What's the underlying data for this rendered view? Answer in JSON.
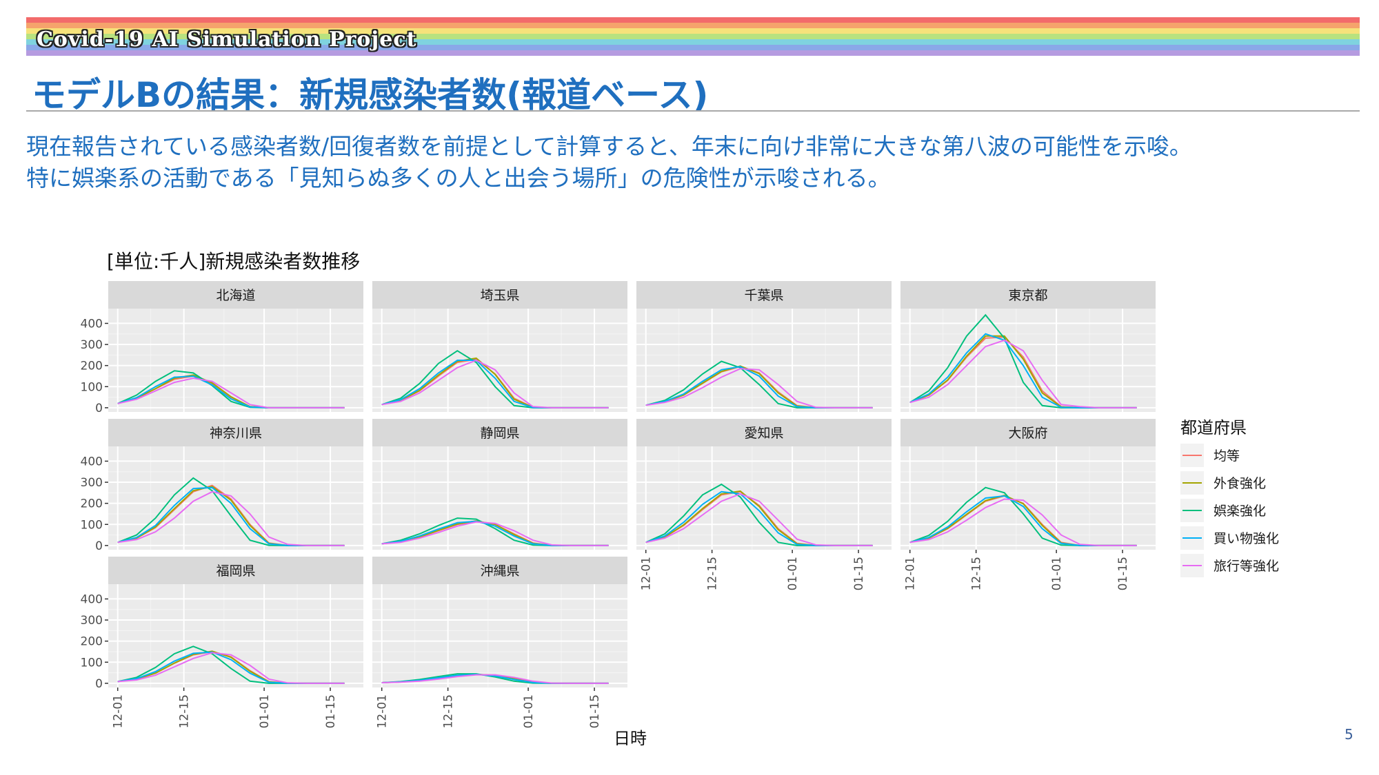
{
  "banner": {
    "title": "Covid-19 AI Simulation Project",
    "stripes": [
      "#f26b6b",
      "#f5a36c",
      "#f6e27a",
      "#b8e27f",
      "#7fd3df",
      "#8aa8e8",
      "#b59be0"
    ]
  },
  "slide": {
    "title": "モデルBの結果：新規感染者数(報道ベース)",
    "lead_line1": "現在報告されている感染者数/回復者数を前提として計算すると、年末に向け非常に大きな第八波の可能性を示唆。",
    "lead_line2": "特に娯楽系の活動である「見知らぬ多くの人と出会う場所」の危険性が示唆される。",
    "page_number": "5"
  },
  "chart_data": {
    "type": "line",
    "title": "[単位:千人]新規感染者数推移",
    "xlabel": "日時",
    "ylabel": "",
    "x_ticks": [
      "12-01",
      "12-15",
      "01-01",
      "01-15"
    ],
    "x_tick_days": [
      0,
      14,
      31,
      45
    ],
    "x_range_days": [
      -2,
      52
    ],
    "y_ticks": [
      "0",
      "100",
      "200",
      "300",
      "400"
    ],
    "ylim": [
      -20,
      470
    ],
    "grid": true,
    "legend_title": "都道府県",
    "legend_position": "right",
    "series_styles": [
      {
        "name": "均等",
        "color": "#f8766d"
      },
      {
        "name": "外食強化",
        "color": "#a3a500"
      },
      {
        "name": "娯楽強化",
        "color": "#00bf7d"
      },
      {
        "name": "買い物強化",
        "color": "#00b0f6"
      },
      {
        "name": "旅行等強化",
        "color": "#e76bf3"
      }
    ],
    "x": [
      0,
      4,
      8,
      12,
      16,
      20,
      24,
      28,
      32,
      36,
      40,
      44,
      48
    ],
    "panels": [
      {
        "name": "北海道",
        "series": [
          {
            "name": "均等",
            "values": [
              20,
              45,
              90,
              135,
              150,
              115,
              50,
              5,
              0,
              0,
              0,
              0,
              0
            ]
          },
          {
            "name": "外食強化",
            "values": [
              20,
              45,
              90,
              140,
              155,
              118,
              52,
              5,
              0,
              0,
              0,
              0,
              0
            ]
          },
          {
            "name": "娯楽強化",
            "values": [
              20,
              60,
              125,
              175,
              165,
              105,
              30,
              2,
              0,
              0,
              0,
              0,
              0
            ]
          },
          {
            "name": "買い物強化",
            "values": [
              20,
              48,
              100,
              145,
              150,
              108,
              42,
              4,
              0,
              0,
              0,
              0,
              0
            ]
          },
          {
            "name": "旅行等強化",
            "values": [
              20,
              40,
              80,
              120,
              140,
              125,
              70,
              15,
              0,
              0,
              0,
              0,
              0
            ]
          }
        ]
      },
      {
        "name": "埼玉県",
        "series": [
          {
            "name": "均等",
            "values": [
              15,
              35,
              80,
              150,
              215,
              230,
              160,
              45,
              2,
              0,
              0,
              0,
              0
            ]
          },
          {
            "name": "外食強化",
            "values": [
              15,
              35,
              82,
              155,
              220,
              235,
              158,
              40,
              2,
              0,
              0,
              0,
              0
            ]
          },
          {
            "name": "娯楽強化",
            "values": [
              15,
              45,
              115,
              210,
              270,
              215,
              100,
              10,
              0,
              0,
              0,
              0,
              0
            ]
          },
          {
            "name": "買い物強化",
            "values": [
              15,
              38,
              90,
              165,
              225,
              225,
              140,
              30,
              1,
              0,
              0,
              0,
              0
            ]
          },
          {
            "name": "旅行等強化",
            "values": [
              15,
              30,
              70,
              130,
              190,
              225,
              180,
              70,
              5,
              0,
              0,
              0,
              0
            ]
          }
        ]
      },
      {
        "name": "千葉県",
        "series": [
          {
            "name": "均等",
            "values": [
              12,
              28,
              60,
              115,
              170,
              195,
              165,
              75,
              10,
              0,
              0,
              0,
              0
            ]
          },
          {
            "name": "外食強化",
            "values": [
              12,
              28,
              60,
              117,
              172,
              198,
              162,
              70,
              8,
              0,
              0,
              0,
              0
            ]
          },
          {
            "name": "娯楽強化",
            "values": [
              12,
              35,
              85,
              160,
              220,
              190,
              110,
              20,
              0,
              0,
              0,
              0,
              0
            ]
          },
          {
            "name": "買い物強化",
            "values": [
              12,
              30,
              65,
              125,
              180,
              195,
              150,
              55,
              5,
              0,
              0,
              0,
              0
            ]
          },
          {
            "name": "旅行等強化",
            "values": [
              12,
              25,
              50,
              95,
              145,
              185,
              180,
              110,
              30,
              2,
              0,
              0,
              0
            ]
          }
        ]
      },
      {
        "name": "東京都",
        "series": [
          {
            "name": "均等",
            "values": [
              25,
              60,
              130,
              240,
              330,
              335,
              240,
              80,
              5,
              0,
              0,
              0,
              0
            ]
          },
          {
            "name": "外食強化",
            "values": [
              25,
              60,
              132,
              245,
              340,
              340,
              230,
              70,
              4,
              0,
              0,
              0,
              0
            ]
          },
          {
            "name": "娯楽強化",
            "values": [
              25,
              80,
              190,
              340,
              440,
              330,
              120,
              10,
              0,
              0,
              0,
              0,
              0
            ]
          },
          {
            "name": "買い物強化",
            "values": [
              25,
              65,
              145,
              260,
              350,
              320,
              200,
              50,
              2,
              0,
              0,
              0,
              0
            ]
          },
          {
            "name": "旅行等強化",
            "values": [
              25,
              50,
              110,
              200,
              290,
              320,
              270,
              130,
              15,
              5,
              0,
              0,
              0
            ]
          }
        ]
      },
      {
        "name": "神奈川県",
        "series": [
          {
            "name": "均等",
            "values": [
              15,
              35,
              85,
              170,
              255,
              285,
              220,
              100,
              12,
              0,
              0,
              0,
              0
            ]
          },
          {
            "name": "外食強化",
            "values": [
              15,
              35,
              88,
              175,
              260,
              280,
              215,
              95,
              10,
              0,
              0,
              0,
              0
            ]
          },
          {
            "name": "娯楽強化",
            "values": [
              15,
              50,
              130,
              240,
              320,
              260,
              140,
              25,
              1,
              0,
              0,
              0,
              0
            ]
          },
          {
            "name": "買い物強化",
            "values": [
              15,
              38,
              95,
              190,
              270,
              275,
              200,
              80,
              8,
              0,
              0,
              0,
              0
            ]
          },
          {
            "name": "旅行等強化",
            "values": [
              15,
              28,
              65,
              130,
              210,
              255,
              235,
              150,
              40,
              5,
              0,
              0,
              0
            ]
          }
        ]
      },
      {
        "name": "静岡県",
        "series": [
          {
            "name": "均等",
            "values": [
              8,
              18,
              40,
              70,
              100,
              115,
              100,
              55,
              12,
              0,
              0,
              0,
              0
            ]
          },
          {
            "name": "外食強化",
            "values": [
              8,
              18,
              40,
              72,
              102,
              117,
              100,
              52,
              10,
              0,
              0,
              0,
              0
            ]
          },
          {
            "name": "娯楽強化",
            "values": [
              8,
              25,
              55,
              95,
              130,
              125,
              80,
              25,
              2,
              0,
              0,
              0,
              0
            ]
          },
          {
            "name": "買い物強化",
            "values": [
              8,
              20,
              45,
              78,
              108,
              115,
              92,
              45,
              8,
              0,
              0,
              0,
              0
            ]
          },
          {
            "name": "旅行等強化",
            "values": [
              8,
              15,
              35,
              62,
              92,
              112,
              105,
              70,
              25,
              3,
              0,
              0,
              0
            ]
          }
        ]
      },
      {
        "name": "愛知県",
        "series": [
          {
            "name": "均等",
            "values": [
              15,
              40,
              95,
              170,
              240,
              255,
              190,
              80,
              10,
              0,
              0,
              0,
              0
            ]
          },
          {
            "name": "外食強化",
            "values": [
              15,
              40,
              98,
              175,
              245,
              258,
              185,
              75,
              8,
              0,
              0,
              0,
              0
            ]
          },
          {
            "name": "娯楽強化",
            "values": [
              15,
              55,
              140,
              240,
              290,
              230,
              110,
              15,
              0,
              0,
              0,
              0,
              0
            ]
          },
          {
            "name": "買い物強化",
            "values": [
              15,
              45,
              110,
              195,
              255,
              245,
              165,
              60,
              5,
              0,
              0,
              0,
              0
            ]
          },
          {
            "name": "旅行等強化",
            "values": [
              15,
              35,
              80,
              145,
              210,
              245,
              210,
              120,
              30,
              3,
              0,
              0,
              0
            ]
          }
        ]
      },
      {
        "name": "大阪府",
        "series": [
          {
            "name": "均等",
            "values": [
              15,
              35,
              80,
              145,
              210,
              235,
              200,
              100,
              15,
              0,
              0,
              0,
              0
            ]
          },
          {
            "name": "外食強化",
            "values": [
              15,
              35,
              82,
              148,
              213,
              238,
              198,
              95,
              12,
              0,
              0,
              0,
              0
            ]
          },
          {
            "name": "娯楽強化",
            "values": [
              15,
              48,
              115,
              205,
              275,
              250,
              150,
              35,
              2,
              0,
              0,
              0,
              0
            ]
          },
          {
            "name": "買い物強化",
            "values": [
              15,
              38,
              88,
              160,
              225,
              235,
              185,
              80,
              10,
              0,
              0,
              0,
              0
            ]
          },
          {
            "name": "旅行等強化",
            "values": [
              15,
              28,
              65,
              120,
              180,
              220,
              215,
              145,
              50,
              5,
              0,
              0,
              0
            ]
          }
        ]
      },
      {
        "name": "福岡県",
        "series": [
          {
            "name": "均等",
            "values": [
              8,
              20,
              48,
              95,
              135,
              150,
              125,
              60,
              8,
              0,
              0,
              0,
              0
            ]
          },
          {
            "name": "外食強化",
            "values": [
              8,
              20,
              48,
              96,
              137,
              152,
              123,
              57,
              7,
              0,
              0,
              0,
              0
            ]
          },
          {
            "name": "娯楽強化",
            "values": [
              8,
              28,
              75,
              140,
              175,
              140,
              70,
              10,
              0,
              0,
              0,
              0,
              0
            ]
          },
          {
            "name": "買い物強化",
            "values": [
              8,
              22,
              55,
              105,
              142,
              148,
              112,
              48,
              5,
              0,
              0,
              0,
              0
            ]
          },
          {
            "name": "旅行等強化",
            "values": [
              8,
              16,
              38,
              78,
              118,
              145,
              135,
              85,
              20,
              2,
              0,
              0,
              0
            ]
          }
        ]
      },
      {
        "name": "沖縄県",
        "series": [
          {
            "name": "均等",
            "values": [
              3,
              6,
              12,
              24,
              36,
              42,
              38,
              22,
              6,
              0,
              0,
              0,
              0
            ]
          },
          {
            "name": "外食強化",
            "values": [
              3,
              6,
              12,
              24,
              36,
              42,
              38,
              21,
              5,
              0,
              0,
              0,
              0
            ]
          },
          {
            "name": "娯楽強化",
            "values": [
              3,
              8,
              18,
              32,
              45,
              45,
              30,
              10,
              1,
              0,
              0,
              0,
              0
            ]
          },
          {
            "name": "買い物強化",
            "values": [
              3,
              7,
              14,
              26,
              38,
              42,
              35,
              18,
              4,
              0,
              0,
              0,
              0
            ]
          },
          {
            "name": "旅行等強化",
            "values": [
              3,
              5,
              10,
              20,
              32,
              40,
              40,
              28,
              10,
              1,
              0,
              0,
              0
            ]
          }
        ]
      }
    ]
  }
}
